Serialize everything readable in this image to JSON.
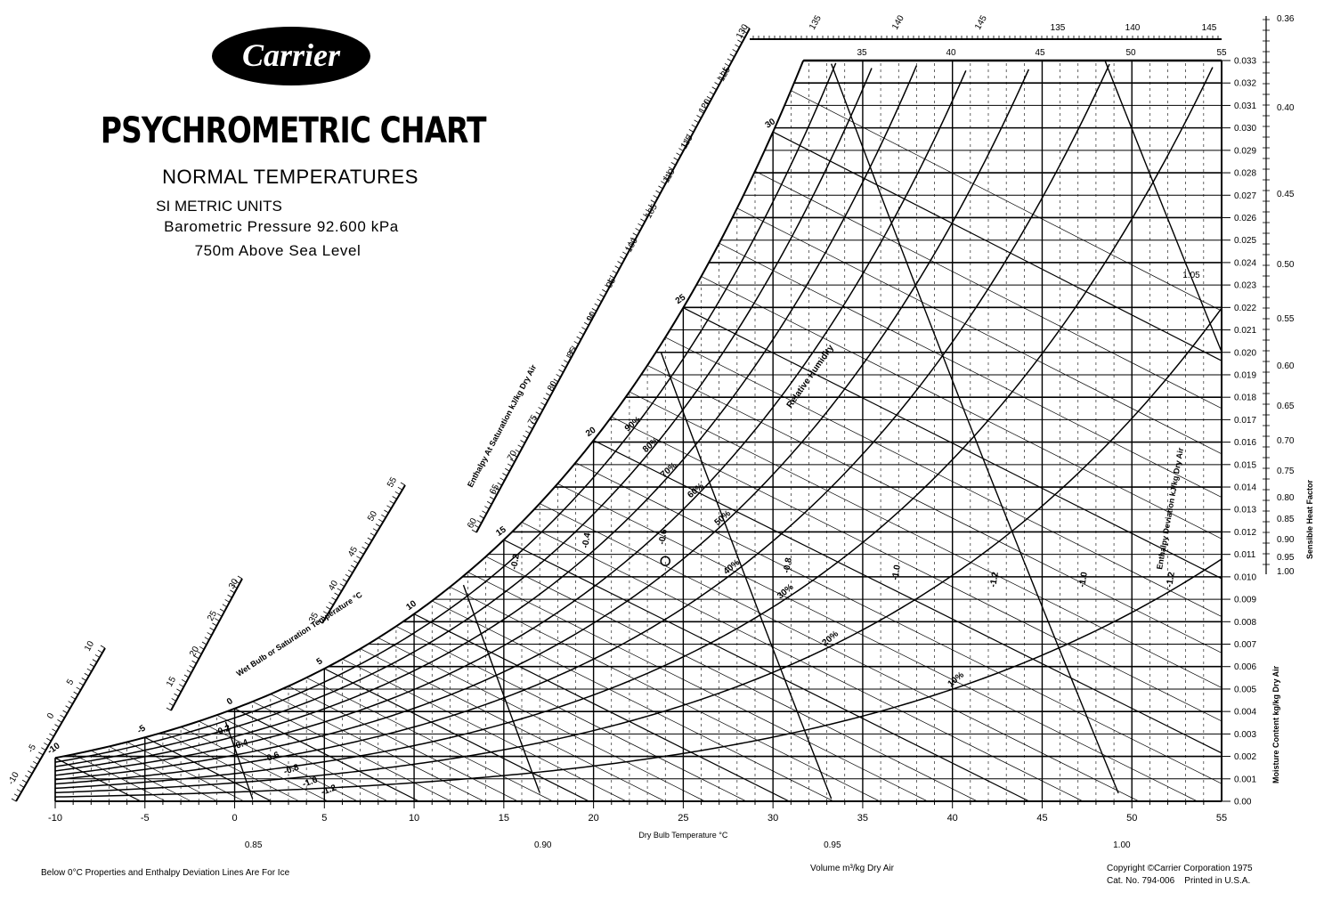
{
  "brand": {
    "logo_text": "Carrier"
  },
  "header": {
    "title": "PSYCHROMETRIC CHART",
    "subtitle": "NORMAL TEMPERATURES",
    "units": "SI METRIC UNITS",
    "pressure": "Barometric Pressure 92.600 kPa",
    "altitude": "750m Above Sea Level"
  },
  "footer": {
    "ice_note": "Below 0°C Properties and Enthalpy Deviation Lines Are For Ice",
    "copyright": "Copyright ©Carrier Corporation 1975",
    "catalog": "Cat. No. 794-006",
    "printed": "Printed in U.S.A."
  },
  "chart_data": {
    "type": "psychrometric",
    "pressure_kpa": 92.6,
    "xlabel": "Dry Bulb Temperature °C",
    "ylabel": "Moisture Content kg/kg Dry Air",
    "xlim": [
      -10,
      55
    ],
    "ylim": [
      0,
      0.033
    ],
    "x_ticks": [
      -10,
      -5,
      0,
      5,
      10,
      15,
      20,
      25,
      30,
      35,
      40,
      45,
      50,
      55
    ],
    "y_ticks": [
      "0.00",
      "0.001",
      "0.002",
      "0.003",
      "0.004",
      "0.005",
      "0.006",
      "0.007",
      "0.008",
      "0.009",
      "0.010",
      "0.011",
      "0.012",
      "0.013",
      "0.014",
      "0.015",
      "0.016",
      "0.017",
      "0.018",
      "0.019",
      "0.020",
      "0.021",
      "0.022",
      "0.023",
      "0.024",
      "0.025",
      "0.026",
      "0.027",
      "0.028",
      "0.029",
      "0.030",
      "0.031",
      "0.032",
      "0.033"
    ],
    "relative_humidity": {
      "label": "Relative Humidity",
      "values": [
        10,
        20,
        30,
        40,
        50,
        60,
        70,
        80,
        90
      ],
      "labels": [
        "10%",
        "20%",
        "30%",
        "40%",
        "50%",
        "60%",
        "70%",
        "80%",
        "90%"
      ]
    },
    "wet_bulb": {
      "label": "Wet Bulb or Saturation Temperature °C",
      "values": [
        -10,
        -5,
        0,
        5,
        10,
        15,
        20,
        25,
        30
      ],
      "labels": [
        "-10",
        "-5",
        "0",
        "5",
        "10",
        "15",
        "20",
        "25",
        "30"
      ]
    },
    "enthalpy_scale": {
      "label": "Enthalpy At Saturation kJ/kg Dry Air",
      "labels": [
        "-10",
        "-5",
        "0",
        "5",
        "10",
        "15",
        "20",
        "25",
        "30",
        "35",
        "40",
        "45",
        "50",
        "55",
        "60",
        "65",
        "70",
        "75",
        "80",
        "85",
        "90",
        "95",
        "100",
        "105",
        "110",
        "115",
        "120",
        "125",
        "130",
        "135",
        "140",
        "145"
      ]
    },
    "top_scale_labels": [
      "35",
      "40",
      "45",
      "50",
      "55"
    ],
    "volume": {
      "label": "Volume m³/kg Dry Air",
      "values": [
        0.85,
        0.9,
        0.95,
        1.0,
        1.05
      ],
      "labels": [
        "0.85",
        "0.90",
        "0.95",
        "1.00",
        "1.05"
      ]
    },
    "enthalpy_deviation": {
      "label": "Enthalpy Deviation kJ/kg Dry Air",
      "labels": [
        "-0.2",
        "-0.4",
        "-0.6",
        "-0.8",
        "-1.0",
        "-1.2",
        "-0.2",
        "-0.4",
        "-0.6",
        "-0.8",
        "-1.0",
        "-1.2"
      ]
    },
    "sensible_heat_factor": {
      "label": "Sensible Heat Factor",
      "labels": [
        "0.36",
        "0.40",
        "0.45",
        "0.50",
        "0.55",
        "0.60",
        "0.65",
        "0.70",
        "0.75",
        "0.80",
        "0.85",
        "0.90",
        "0.95",
        "1.00"
      ]
    }
  }
}
